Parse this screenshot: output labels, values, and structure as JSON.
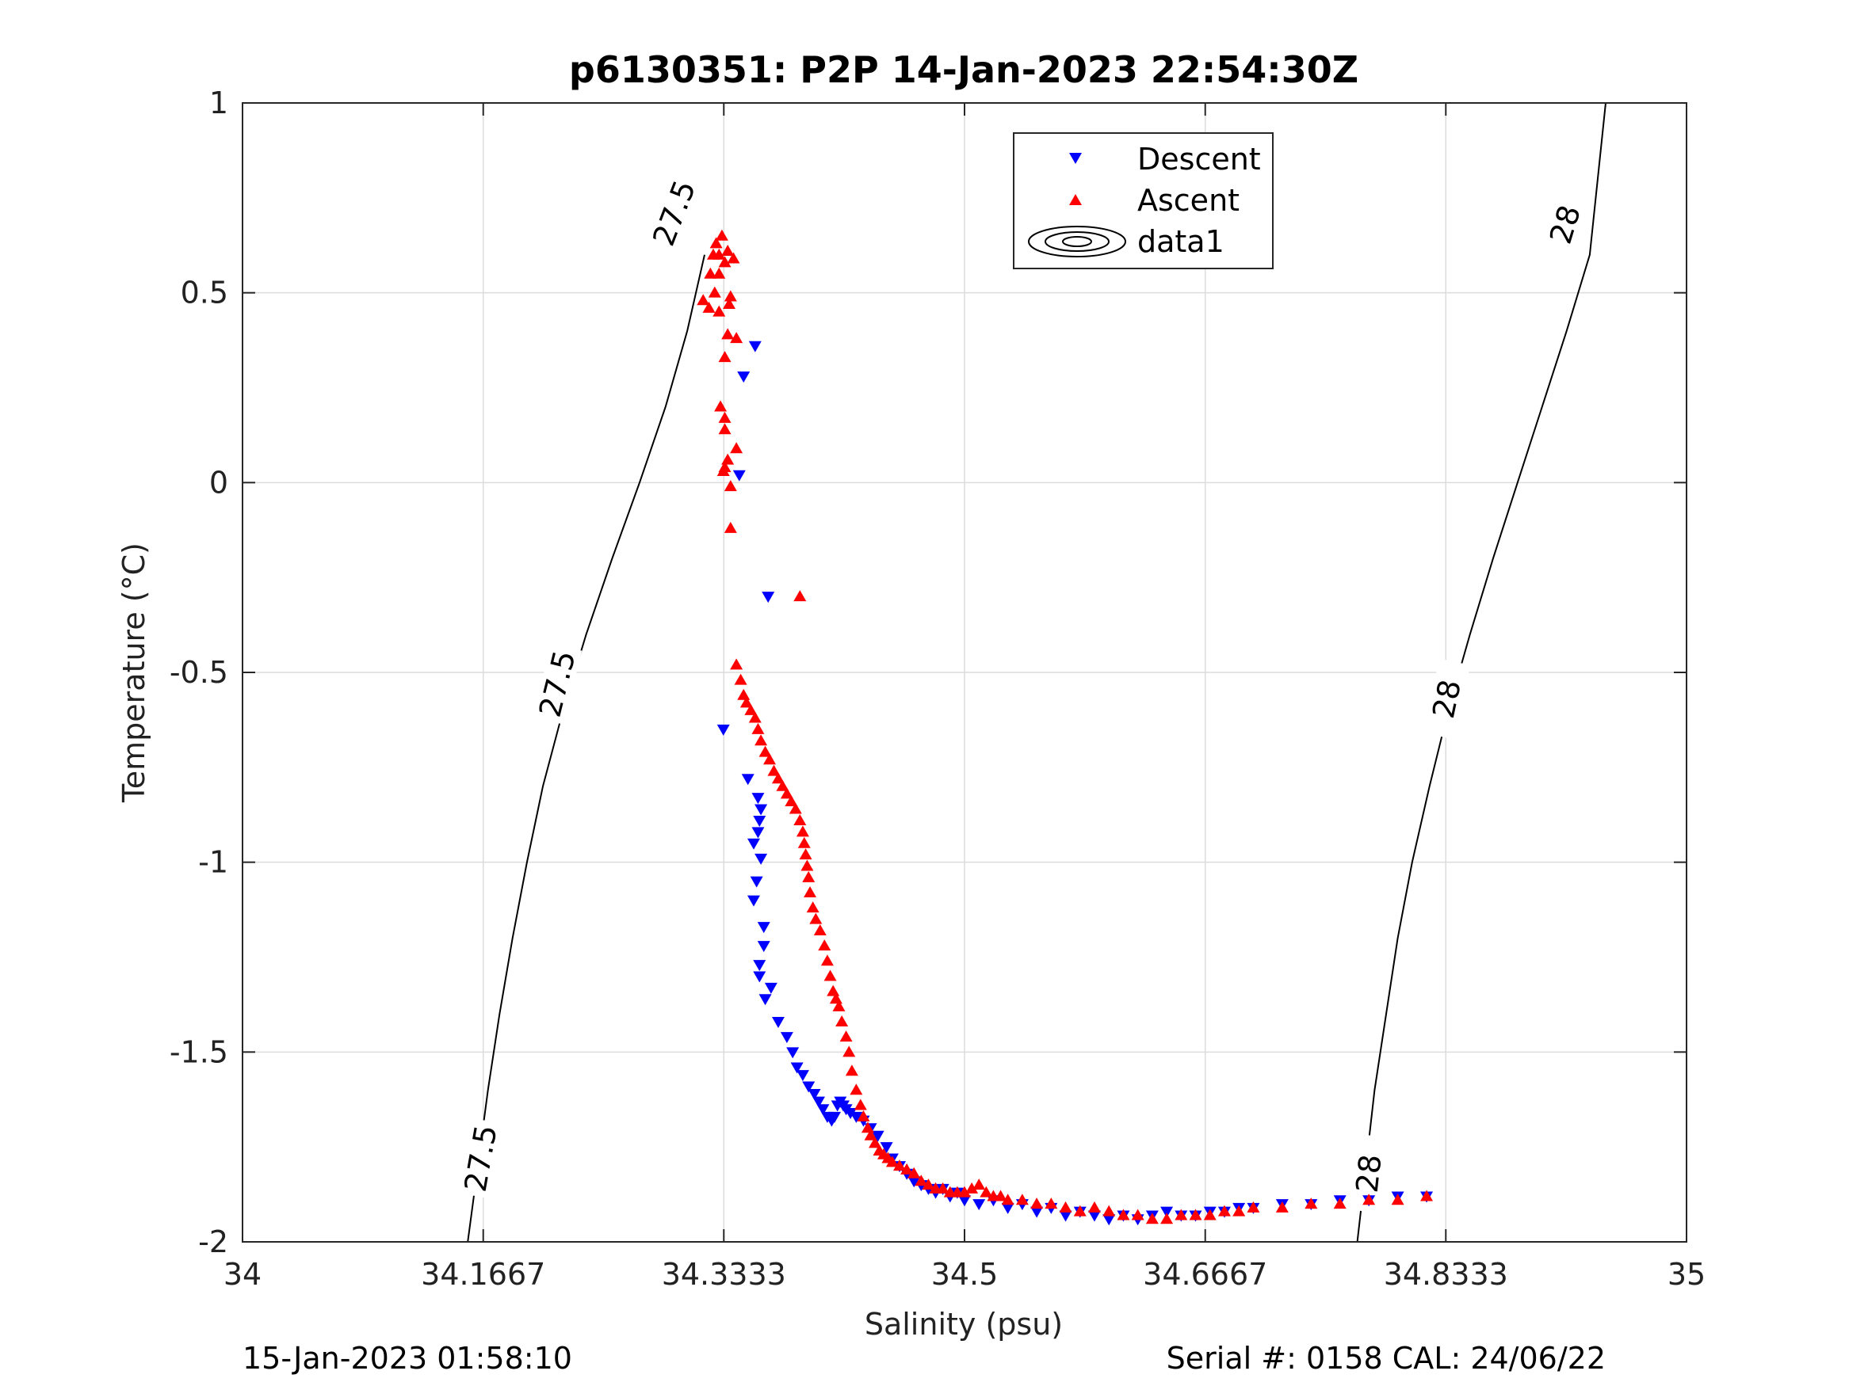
{
  "chart_data": {
    "type": "scatter",
    "title": "p6130351: P2P 14-Jan-2023 22:54:30Z",
    "xlabel": "Salinity (psu)",
    "ylabel": "Temperature (°C)",
    "xlim": [
      34,
      35
    ],
    "ylim": [
      -2,
      1
    ],
    "xticks": [
      34,
      34.1667,
      34.3333,
      34.5,
      34.6667,
      34.8333,
      35
    ],
    "xtick_labels": [
      "34",
      "34.1667",
      "34.3333",
      "34.5",
      "34.6667",
      "34.8333",
      "35"
    ],
    "yticks": [
      1,
      0.5,
      0,
      -0.5,
      -1,
      -1.5,
      -2
    ],
    "ytick_labels": [
      "1",
      "0.5",
      "0",
      "-0.5",
      "-1",
      "-1.5",
      "-2"
    ],
    "grid": true,
    "legend_position": "top-center",
    "legend": [
      "Descent",
      "Ascent",
      "data1"
    ],
    "series": [
      {
        "name": "Descent",
        "color": "#0000ff",
        "marker": "triangle-down",
        "x": [
          34.355,
          34.347,
          34.364,
          34.344,
          34.333,
          34.35,
          34.357,
          34.359,
          34.358,
          34.357,
          34.354,
          34.359,
          34.356,
          34.354,
          34.361,
          34.361,
          34.358,
          34.358,
          34.366,
          34.362,
          34.371,
          34.377,
          34.381,
          34.384,
          34.388,
          34.392,
          34.396,
          34.399,
          34.402,
          34.405,
          34.408,
          34.41,
          34.412,
          34.414,
          34.416,
          34.418,
          34.421,
          34.425,
          34.43,
          34.435,
          34.44,
          34.446,
          34.45,
          34.455,
          34.46,
          34.465,
          34.47,
          34.475,
          34.48,
          34.485,
          34.49,
          34.495,
          34.5,
          34.51,
          34.52,
          34.53,
          34.54,
          34.55,
          34.56,
          34.57,
          34.58,
          34.59,
          34.6,
          34.61,
          34.62,
          34.63,
          34.64,
          34.65,
          34.66,
          34.67,
          34.68,
          34.69,
          34.7,
          34.72,
          34.74,
          34.76,
          34.78,
          34.8,
          34.82
        ],
        "y": [
          0.36,
          0.28,
          -0.3,
          0.02,
          -0.65,
          -0.78,
          -0.83,
          -0.86,
          -0.89,
          -0.92,
          -0.95,
          -0.99,
          -1.05,
          -1.1,
          -1.17,
          -1.22,
          -1.27,
          -1.3,
          -1.33,
          -1.36,
          -1.42,
          -1.46,
          -1.5,
          -1.54,
          -1.56,
          -1.59,
          -1.61,
          -1.63,
          -1.65,
          -1.67,
          -1.68,
          -1.67,
          -1.64,
          -1.63,
          -1.64,
          -1.65,
          -1.66,
          -1.67,
          -1.68,
          -1.7,
          -1.72,
          -1.75,
          -1.78,
          -1.8,
          -1.82,
          -1.84,
          -1.85,
          -1.86,
          -1.87,
          -1.86,
          -1.88,
          -1.87,
          -1.89,
          -1.9,
          -1.89,
          -1.91,
          -1.9,
          -1.92,
          -1.91,
          -1.93,
          -1.92,
          -1.93,
          -1.94,
          -1.93,
          -1.94,
          -1.93,
          -1.92,
          -1.93,
          -1.93,
          -1.92,
          -1.92,
          -1.91,
          -1.91,
          -1.9,
          -1.9,
          -1.89,
          -1.89,
          -1.88,
          -1.88
        ]
      },
      {
        "name": "Ascent",
        "color": "#ff0000",
        "marker": "triangle-up",
        "x": [
          34.332,
          34.328,
          34.336,
          34.33,
          34.326,
          34.334,
          34.34,
          34.324,
          34.33,
          34.338,
          34.327,
          34.337,
          34.319,
          34.323,
          34.33,
          34.336,
          34.342,
          34.334,
          34.331,
          34.334,
          34.334,
          34.336,
          34.342,
          34.333,
          34.334,
          34.338,
          34.338,
          34.342,
          34.386,
          34.345,
          34.347,
          34.349,
          34.352,
          34.355,
          34.357,
          34.359,
          34.362,
          34.365,
          34.368,
          34.371,
          34.374,
          34.377,
          34.38,
          34.383,
          34.386,
          34.388,
          34.389,
          34.39,
          34.391,
          34.392,
          34.393,
          34.395,
          34.397,
          34.4,
          34.403,
          34.405,
          34.407,
          34.409,
          34.411,
          34.413,
          34.415,
          34.418,
          34.42,
          34.422,
          34.425,
          34.428,
          34.43,
          34.433,
          34.435,
          34.438,
          34.441,
          34.444,
          34.447,
          34.45,
          34.455,
          34.46,
          34.465,
          34.47,
          34.475,
          34.48,
          34.485,
          34.49,
          34.495,
          34.5,
          34.505,
          34.51,
          34.515,
          34.52,
          34.525,
          34.53,
          34.54,
          34.55,
          34.56,
          34.57,
          34.58,
          34.59,
          34.6,
          34.61,
          34.62,
          34.63,
          34.64,
          34.65,
          34.66,
          34.67,
          34.68,
          34.69,
          34.7,
          34.72,
          34.74,
          34.76,
          34.78,
          34.8,
          34.82
        ],
        "y": [
          0.65,
          0.63,
          0.61,
          0.6,
          0.6,
          0.58,
          0.59,
          0.55,
          0.55,
          0.49,
          0.5,
          0.47,
          0.48,
          0.46,
          0.45,
          0.39,
          0.38,
          0.33,
          0.2,
          0.17,
          0.14,
          0.06,
          0.09,
          0.03,
          0.04,
          -0.01,
          -0.12,
          -0.48,
          -0.3,
          -0.52,
          -0.56,
          -0.58,
          -0.6,
          -0.62,
          -0.65,
          -0.68,
          -0.71,
          -0.73,
          -0.76,
          -0.78,
          -0.8,
          -0.82,
          -0.84,
          -0.86,
          -0.89,
          -0.92,
          -0.95,
          -0.98,
          -1.01,
          -1.04,
          -1.08,
          -1.12,
          -1.15,
          -1.18,
          -1.22,
          -1.26,
          -1.3,
          -1.34,
          -1.36,
          -1.38,
          -1.42,
          -1.46,
          -1.5,
          -1.55,
          -1.6,
          -1.64,
          -1.67,
          -1.7,
          -1.72,
          -1.74,
          -1.76,
          -1.77,
          -1.78,
          -1.79,
          -1.8,
          -1.81,
          -1.82,
          -1.84,
          -1.85,
          -1.86,
          -1.86,
          -1.87,
          -1.87,
          -1.87,
          -1.86,
          -1.85,
          -1.87,
          -1.88,
          -1.88,
          -1.89,
          -1.89,
          -1.9,
          -1.9,
          -1.91,
          -1.92,
          -1.91,
          -1.92,
          -1.93,
          -1.93,
          -1.94,
          -1.94,
          -1.93,
          -1.93,
          -1.93,
          -1.92,
          -1.92,
          -1.91,
          -1.91,
          -1.9,
          -1.9,
          -1.89,
          -1.89,
          -1.88
        ]
      }
    ],
    "contours": [
      {
        "label": "27.5",
        "x": [
          34.156,
          34.163,
          34.17,
          34.178,
          34.187,
          34.197,
          34.208,
          34.222,
          34.238,
          34.256,
          34.275,
          34.293,
          34.308,
          34.32
        ],
        "y": [
          -2,
          -1.8,
          -1.6,
          -1.4,
          -1.2,
          -1.0,
          -0.8,
          -0.6,
          -0.4,
          -0.2,
          0.0,
          0.2,
          0.4,
          0.6
        ],
        "label_points": [
          [
            34.165,
            -1.78
          ],
          [
            34.218,
            -0.53
          ],
          [
            34.299,
            0.71
          ]
        ],
        "label_angles": [
          -80,
          -76,
          -69
        ]
      },
      {
        "label": "28",
        "x": [
          34.772,
          34.778,
          34.784,
          34.792,
          34.8,
          34.81,
          34.822,
          34.835,
          34.85,
          34.866,
          34.883,
          34.9,
          34.917,
          34.933,
          34.944
        ],
        "y": [
          -2,
          -1.8,
          -1.6,
          -1.4,
          -1.2,
          -1.0,
          -0.8,
          -0.6,
          -0.4,
          -0.2,
          0.0,
          0.2,
          0.4,
          0.6,
          1.0
        ],
        "label_points": [
          [
            34.78,
            -1.82
          ],
          [
            34.834,
            -0.57
          ],
          [
            34.916,
            0.68
          ]
        ],
        "label_angles": [
          -84,
          -78,
          -73
        ]
      }
    ],
    "footer_left": "15-Jan-2023 01:58:10",
    "footer_right": "Serial #: 0158  CAL: 24/06/22"
  }
}
